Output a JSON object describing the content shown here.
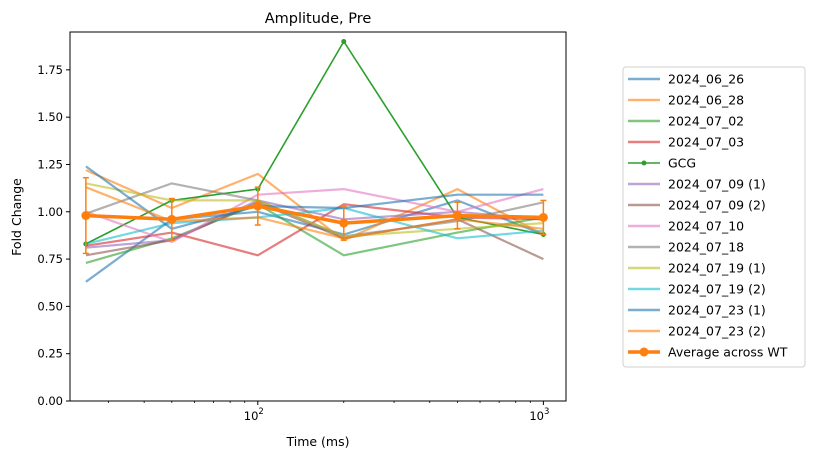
{
  "chart_data": {
    "type": "line",
    "title": "Amplitude, Pre",
    "xlabel": "Time (ms)",
    "ylabel": "Fold Change",
    "xscale": "log",
    "xlim": [
      22,
      1200
    ],
    "ylim": [
      0,
      1.95
    ],
    "x": [
      25,
      50,
      100,
      200,
      500,
      1000
    ],
    "x_ticks": [
      {
        "value": 100,
        "base": "10",
        "exp": "2"
      },
      {
        "value": 1000,
        "base": "10",
        "exp": "3"
      }
    ],
    "y_ticks": [
      "0.00",
      "0.25",
      "0.50",
      "0.75",
      "1.00",
      "1.25",
      "1.50",
      "1.75"
    ],
    "grid": false,
    "legend_position": "outside-right",
    "series": [
      {
        "name": "2024_06_26",
        "color": "#1f77b4",
        "values": [
          0.63,
          0.96,
          1.0,
          0.88,
          1.06,
          0.88
        ]
      },
      {
        "name": "2024_06_28",
        "color": "#ff7f0e",
        "values": [
          1.22,
          1.02,
          1.2,
          0.85,
          1.12,
          0.88
        ]
      },
      {
        "name": "2024_07_02",
        "color": "#2ca02c",
        "values": [
          0.73,
          0.86,
          1.04,
          0.77,
          0.89,
          0.97
        ]
      },
      {
        "name": "2024_07_03",
        "color": "#d62728",
        "values": [
          0.82,
          0.89,
          0.77,
          1.04,
          0.97,
          0.96
        ]
      },
      {
        "name": "GCG",
        "color": "#2ca02c",
        "marker": true,
        "values": [
          0.83,
          1.06,
          1.12,
          1.9,
          0.97,
          0.88
        ]
      },
      {
        "name": "2024_07_09 (1)",
        "color": "#9467bd",
        "values": [
          0.81,
          0.85,
          1.06,
          0.96,
          1.0,
          0.96
        ]
      },
      {
        "name": "2024_07_09 (2)",
        "color": "#8c564b",
        "values": [
          0.77,
          0.85,
          1.05,
          0.86,
          0.96,
          0.75
        ]
      },
      {
        "name": "2024_07_10",
        "color": "#e377c2",
        "values": [
          1.0,
          0.84,
          1.09,
          1.12,
          1.0,
          1.12
        ]
      },
      {
        "name": "2024_07_18",
        "color": "#7f7f7f",
        "values": [
          0.99,
          1.15,
          1.06,
          0.87,
          0.95,
          1.05
        ]
      },
      {
        "name": "2024_07_19 (1)",
        "color": "#bcbd22",
        "values": [
          1.15,
          1.06,
          1.06,
          0.87,
          0.91,
          0.94
        ]
      },
      {
        "name": "2024_07_19 (2)",
        "color": "#17becf",
        "values": [
          0.83,
          0.94,
          0.97,
          1.02,
          0.86,
          0.9
        ]
      },
      {
        "name": "2024_07_23 (1)",
        "color": "#1f77b4",
        "values": [
          1.24,
          0.91,
          1.03,
          1.02,
          1.09,
          1.09
        ]
      },
      {
        "name": "2024_07_23 (2)",
        "color": "#ff7f0e",
        "values": [
          1.13,
          0.95,
          0.97,
          0.86,
          0.96,
          0.91
        ]
      }
    ],
    "average": {
      "name": "Average across WT",
      "color": "#ff7f0e",
      "values": [
        0.98,
        0.96,
        1.03,
        0.94,
        0.98,
        0.97
      ],
      "errors": [
        0.2,
        0.11,
        0.1,
        0.09,
        0.07,
        0.09
      ]
    }
  }
}
